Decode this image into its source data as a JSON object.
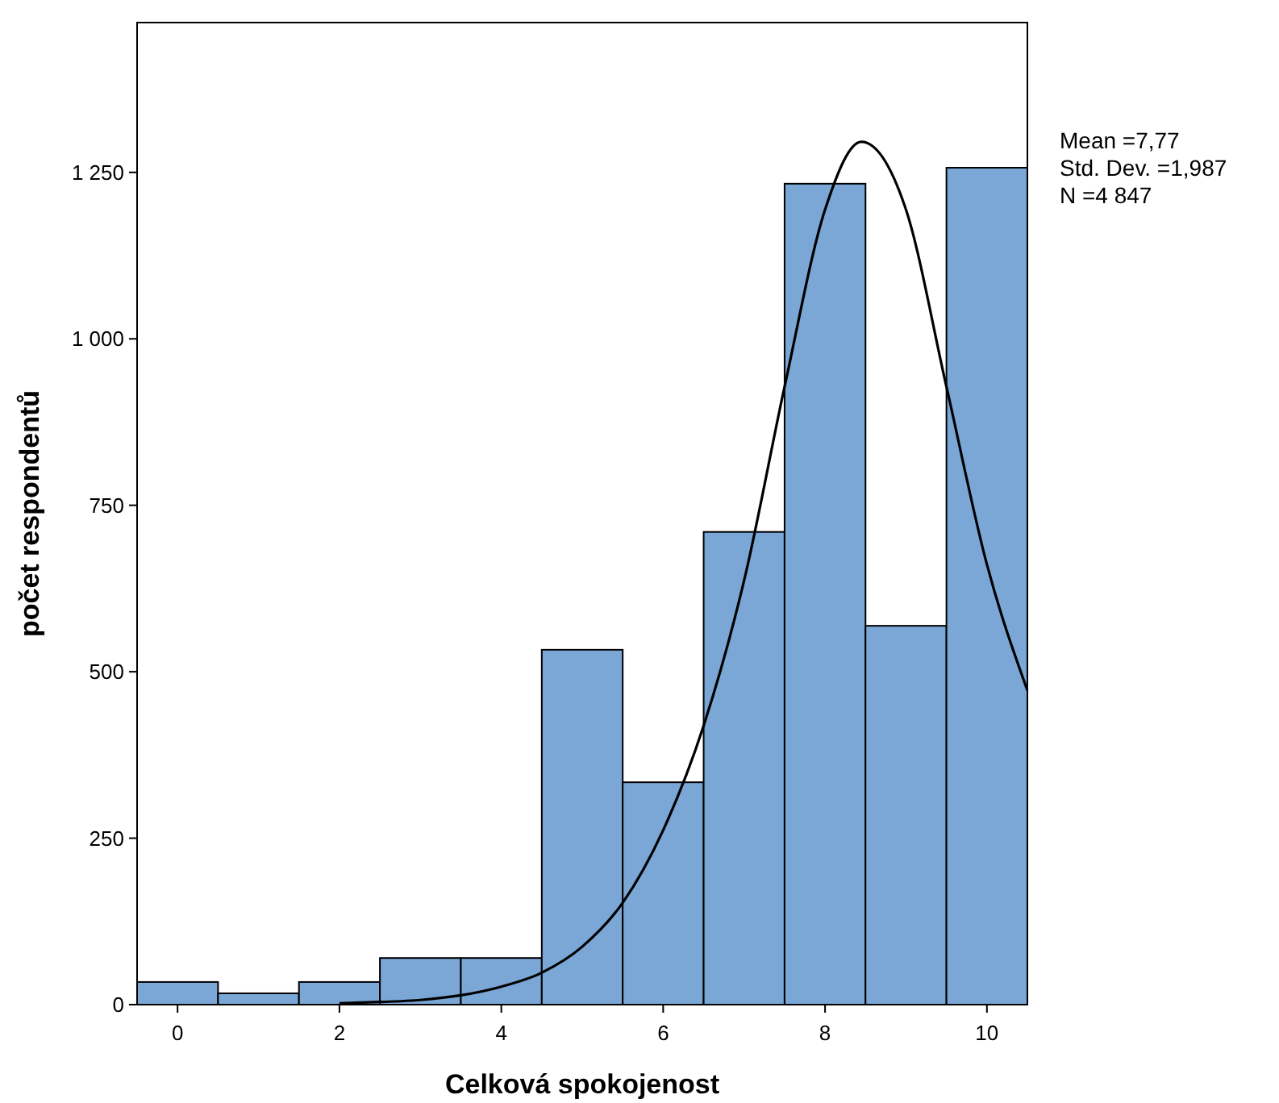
{
  "chart_data": {
    "type": "histogram",
    "xlabel": "Celková spokojenost",
    "ylabel": "počet respondentů",
    "annotations": [
      "Mean =7,77",
      "Std. Dev. =1,987",
      "N =4 847"
    ],
    "xlim": [
      -0.5,
      10.5
    ],
    "xticks": [
      0,
      2,
      4,
      6,
      8,
      10
    ],
    "ylim": [
      0,
      1475
    ],
    "yticks": [
      0,
      250,
      500,
      750,
      {
        "value": 1000,
        "label": "1 000"
      },
      {
        "value": 1250,
        "label": "1 250"
      }
    ],
    "series": [
      {
        "color": "#7aa7d6",
        "bins": [
          -0.5,
          0.5,
          1.5,
          2.5,
          3.5,
          4.5,
          5.5,
          6.5,
          7.5,
          8.5,
          9.5,
          10.5
        ],
        "values": [
          34,
          17,
          34,
          70,
          70,
          533,
          334,
          710,
          1233,
          569,
          1257
        ]
      },
      {
        "type": "line",
        "color": "#000000",
        "marker": "none",
        "x": [
          2,
          2.5,
          3,
          3.5,
          4,
          4.5,
          5,
          5.5,
          6,
          6.5,
          7,
          7.5,
          8,
          8.45,
          9,
          9.5,
          10,
          10.5
        ],
        "values": [
          2,
          4,
          7,
          14,
          27,
          48,
          87,
          153,
          262,
          419,
          637,
          928,
          1194,
          1296,
          1194,
          928,
          661,
          472
        ]
      }
    ]
  }
}
